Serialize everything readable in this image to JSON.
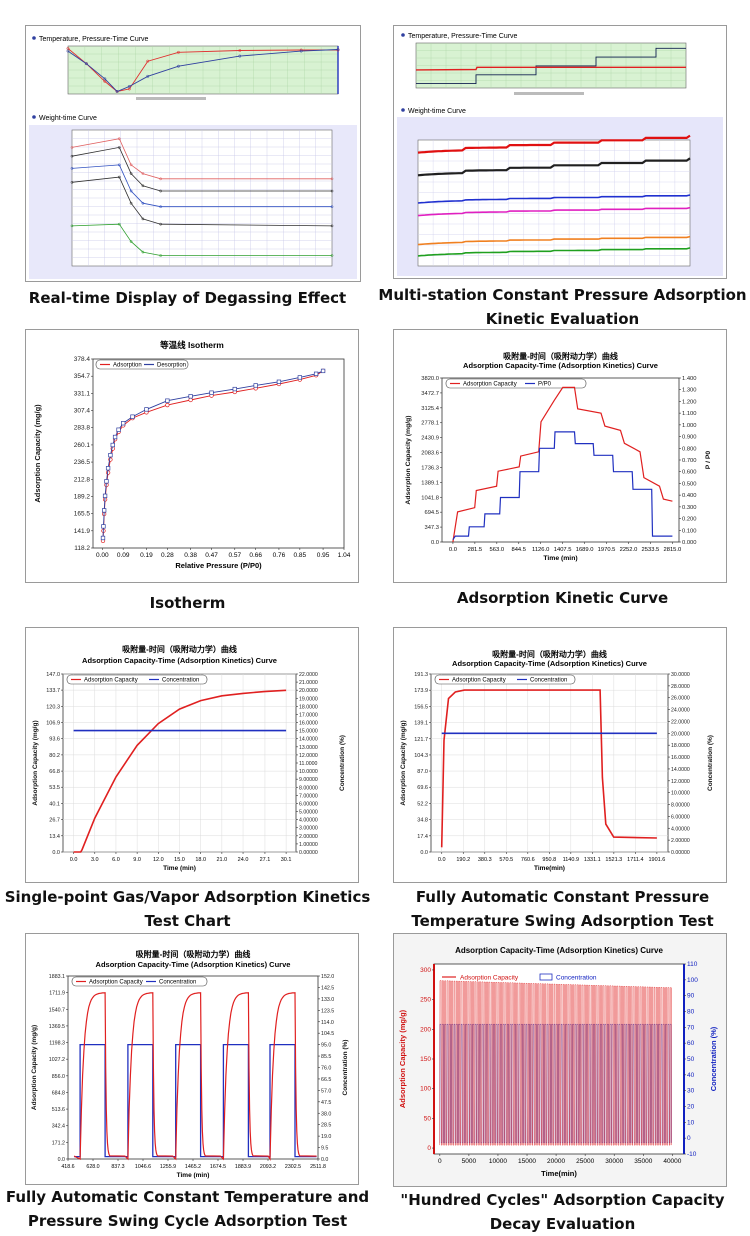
{
  "captions": {
    "p1": "Real-time Display of Degassing Effect",
    "p2": "Multi-station Constant Pressure Adsorption Kinetic Evaluation",
    "p3": "Isotherm",
    "p4": "Adsorption Kinetic Curve",
    "p5": "Single-point Gas/Vapor Adsorption Kinetics Test Chart",
    "p6": "Fully Automatic Constant Pressure Temperature Swing Adsorption Test",
    "p7": "Fully Automatic Constant Temperature and Pressure Swing Cycle Adsorption Test",
    "p8": "\"Hundred Cycles\" Adsorption Capacity Decay Evaluation"
  },
  "chart_data": [
    {
      "id": "degas",
      "type": "line",
      "subplots": [
        {
          "title": "Temperature, Pressure-Time Curve",
          "x": [
            4,
            10,
            16,
            20,
            24,
            30,
            40,
            60,
            80,
            92
          ],
          "series": [
            {
              "values": [
                260,
                200,
                130,
                90,
                100,
                210,
                245,
                252,
                254,
                254
              ],
              "color": "#e03030"
            },
            {
              "values": [
                250,
                200,
                140,
                90,
                110,
                150,
                190,
                230,
                250,
                256
              ],
              "color": "#3040a0"
            }
          ]
        },
        {
          "title": "Weight-time Curve",
          "x": [
            4,
            20,
            24,
            28,
            34,
            92
          ],
          "series": [
            {
              "values": [
                350,
                355,
                340,
                335,
                332,
                332
              ],
              "color": "#e06060"
            },
            {
              "values": [
                345,
                350,
                335,
                328,
                325,
                325
              ],
              "color": "#303030"
            },
            {
              "values": [
                338,
                340,
                325,
                318,
                316,
                316
              ],
              "color": "#3050c0"
            },
            {
              "values": [
                330,
                333,
                318,
                309,
                306,
                305
              ],
              "color": "#303030"
            },
            {
              "values": [
                305,
                306,
                296,
                290,
                288,
                288
              ],
              "color": "#30a030"
            }
          ]
        }
      ]
    },
    {
      "id": "multistation",
      "type": "line",
      "subplots": [
        {
          "title": "Temperature, Pressure-Time Curve",
          "x": [
            0,
            400,
            800,
            1200,
            1600,
            1800
          ],
          "series": [
            {
              "values": [
                1,
                2,
                3,
                4,
                5,
                5
              ],
              "color": "#102050"
            },
            {
              "values": [
                2.6,
                2.7,
                2.7,
                2.7,
                2.7,
                2.7
              ],
              "color": "#e02020"
            }
          ]
        },
        {
          "title": "Weight-time Curve",
          "series": [
            {
              "color": "#e01010",
              "level": 0.9
            },
            {
              "color": "#202020",
              "level": 0.72
            },
            {
              "color": "#2030d0",
              "level": 0.5
            },
            {
              "color": "#e020c0",
              "level": 0.4
            },
            {
              "color": "#f08020",
              "level": 0.17
            },
            {
              "color": "#20a020",
              "level": 0.08
            }
          ]
        }
      ]
    },
    {
      "id": "isotherm",
      "type": "line",
      "title": "等温线 Isotherm",
      "xlabel": "Relative Pressure (P/P0)",
      "ylabel": "Adsorption Capacity (mg/g)",
      "xticks": [
        "0.00",
        "0.09",
        "0.19",
        "0.28",
        "0.38",
        "0.47",
        "0.57",
        "0.66",
        "0.76",
        "0.85",
        "0.95",
        "1.04"
      ],
      "yticks": [
        "118.2",
        "141.9",
        "165.5",
        "189.2",
        "212.8",
        "236.5",
        "260.1",
        "283.8",
        "307.4",
        "331.1",
        "354.7",
        "378.4"
      ],
      "xlim": [
        -0.04,
        1.04
      ],
      "ylim": [
        118.2,
        378.4
      ],
      "series": [
        {
          "name": "Adsorption",
          "color": "#e02020",
          "x": [
            0.003,
            0.005,
            0.008,
            0.012,
            0.018,
            0.025,
            0.035,
            0.045,
            0.055,
            0.07,
            0.09,
            0.13,
            0.19,
            0.28,
            0.38,
            0.47,
            0.57,
            0.66,
            0.76,
            0.85,
            0.92,
            0.95
          ],
          "y": [
            128,
            142,
            165,
            185,
            205,
            222,
            240,
            255,
            268,
            278,
            287,
            297,
            305,
            315,
            322,
            328,
            333,
            338,
            344,
            350,
            356,
            362
          ]
        },
        {
          "name": "Desorption",
          "color": "#3040a0",
          "x": [
            0.003,
            0.005,
            0.008,
            0.012,
            0.018,
            0.025,
            0.035,
            0.045,
            0.055,
            0.07,
            0.09,
            0.13,
            0.19,
            0.28,
            0.38,
            0.47,
            0.57,
            0.66,
            0.76,
            0.85,
            0.92,
            0.95
          ],
          "y": [
            132,
            148,
            170,
            190,
            210,
            228,
            246,
            260,
            271,
            281,
            290,
            299,
            309,
            321,
            327,
            332,
            337,
            342,
            347,
            353,
            358,
            362
          ]
        }
      ]
    },
    {
      "id": "kinetic",
      "type": "line",
      "title_cn": "吸附量-时间（吸附动力学）曲线",
      "title": "Adsorption Capacity-Time (Adsorption Kinetics) Curve",
      "xlabel": "Time (min)",
      "ylabel": "Adsorption Capacity (mg/g)",
      "y2label": "P / P0",
      "xticks": [
        "0.0",
        "281.5",
        "563.0",
        "844.5",
        "1126.0",
        "1407.5",
        "1689.0",
        "1970.5",
        "2252.0",
        "2533.5",
        "2815.0"
      ],
      "yticks": [
        "0.0",
        "347.3",
        "694.5",
        "1041.8",
        "1389.1",
        "1736.3",
        "2083.6",
        "2430.9",
        "2778.1",
        "3125.4",
        "3472.7",
        "3820.0"
      ],
      "y2ticks": [
        "0.000",
        "0.100",
        "0.200",
        "0.300",
        "0.400",
        "0.500",
        "0.600",
        "0.700",
        "0.800",
        "0.900",
        "1.000",
        "1.100",
        "1.200",
        "1.300",
        "1.400"
      ],
      "xlim": [
        -140,
        2900
      ],
      "ylim": [
        0,
        3820
      ],
      "y2lim": [
        0,
        1.4
      ],
      "series": [
        {
          "name": "Adsorption  Capacity",
          "color": "#e02020",
          "x": [
            0,
            60,
            280,
            300,
            560,
            580,
            850,
            870,
            1100,
            1130,
            1300,
            1410,
            1560,
            1600,
            1900,
            1950,
            2150,
            2200,
            2400,
            2450,
            2650,
            2700,
            2815
          ],
          "y": [
            0,
            700,
            800,
            1200,
            1300,
            1650,
            1750,
            2000,
            2100,
            2800,
            3300,
            3600,
            3600,
            3100,
            3000,
            2700,
            2600,
            2300,
            2100,
            1500,
            1300,
            1000,
            950
          ]
        },
        {
          "name": "P/P0",
          "color": "#2030c0",
          "x": [
            0,
            30,
            200,
            210,
            400,
            410,
            600,
            610,
            850,
            860,
            1100,
            1110,
            1300,
            1310,
            1560,
            1570,
            1800,
            1810,
            2050,
            2060,
            2300,
            2310,
            2550,
            2560,
            2815
          ],
          "y": [
            0.02,
            0.05,
            0.05,
            0.13,
            0.13,
            0.24,
            0.24,
            0.38,
            0.38,
            0.6,
            0.6,
            0.8,
            0.8,
            0.94,
            0.94,
            0.84,
            0.84,
            0.74,
            0.74,
            0.6,
            0.6,
            0.45,
            0.45,
            0.05,
            0.05
          ]
        }
      ]
    },
    {
      "id": "single_point",
      "type": "line",
      "title_cn": "吸附量-时间（吸附动力学）曲线",
      "title": "Adsorption Capacity-Time (Adsorption Kinetics) Curve",
      "xlabel": "Time (min)",
      "ylabel": "Adsorption Capacity (mg/g)",
      "y2label": "Concentration (%)",
      "xticks": [
        "0.0",
        "3.0",
        "6.0",
        "9.0",
        "12.0",
        "15.0",
        "18.0",
        "21.0",
        "24.0",
        "27.1",
        "30.1"
      ],
      "yticks": [
        "0.0",
        "13.4",
        "26.7",
        "40.1",
        "53.5",
        "66.8",
        "80.2",
        "93.6",
        "106.9",
        "120.3",
        "133.7",
        "147.0"
      ],
      "y2ticks": [
        "0.00000",
        "1.00000",
        "2.00000",
        "3.00000",
        "4.00000",
        "5.00000",
        "6.00000",
        "7.00000",
        "8.00000",
        "9.00000",
        "10.0000",
        "11.0000",
        "12.0000",
        "13.0000",
        "14.0000",
        "15.0000",
        "16.0000",
        "17.0000",
        "18.0000",
        "19.0000",
        "20.0000",
        "21.0000",
        "22.0000"
      ],
      "xlim": [
        -1.5,
        31.5
      ],
      "ylim": [
        0,
        147
      ],
      "y2lim": [
        0,
        22
      ],
      "series": [
        {
          "name": "Adsorption  Capacity",
          "color": "#e02020",
          "x": [
            0,
            1,
            1.2,
            3,
            6,
            9,
            12,
            15,
            18,
            21,
            24,
            27,
            30.1
          ],
          "y": [
            0,
            0,
            2,
            28,
            62,
            88,
            106,
            118,
            125,
            129,
            131,
            132.5,
            133.5
          ]
        },
        {
          "name": "Concentration",
          "color": "#2030c0",
          "x": [
            0,
            30.1
          ],
          "y": [
            15,
            15
          ]
        }
      ]
    },
    {
      "id": "tsa",
      "type": "line",
      "title_cn": "吸附量-时间（吸附动力学）曲线",
      "title": "Adsorption Capacity-Time (Adsorption Kinetics) Curve",
      "xlabel": "Time(min)",
      "ylabel": "Adsorption Capacity (mg/g)",
      "y2label": "Concentration (%)",
      "xticks": [
        "0.0",
        "190.2",
        "380.3",
        "570.5",
        "760.6",
        "950.8",
        "1140.9",
        "1331.1",
        "1521.3",
        "1711.4",
        "1901.6"
      ],
      "yticks": [
        "0.0",
        "17.4",
        "34.8",
        "52.2",
        "69.6",
        "87.0",
        "104.3",
        "121.7",
        "139.1",
        "156.5",
        "173.9",
        "191.3"
      ],
      "y2ticks": [
        "0.00000",
        "2.00000",
        "4.00000",
        "6.00000",
        "8.00000",
        "10.0000",
        "12.0000",
        "14.0000",
        "16.0000",
        "18.0000",
        "20.0000",
        "22.0000",
        "24.0000",
        "26.0000",
        "28.0000",
        "30.0000"
      ],
      "xlim": [
        -95,
        2000
      ],
      "ylim": [
        0,
        191.3
      ],
      "y2lim": [
        0,
        30
      ],
      "series": [
        {
          "name": "Adsorption  Capacity",
          "color": "#e02020",
          "x": [
            0,
            20,
            60,
            120,
            200,
            1400,
            1420,
            1450,
            1520,
            1901.6
          ],
          "y": [
            5,
            120,
            165,
            172,
            174,
            174,
            80,
            30,
            16,
            15
          ]
        },
        {
          "name": "Concentration",
          "color": "#2030c0",
          "x": [
            0,
            1901.6
          ],
          "y": [
            20,
            20
          ]
        }
      ]
    },
    {
      "id": "psa_cycle",
      "type": "line",
      "title_cn": "吸附量-时间（吸附动力学）曲线",
      "title": "Adsorption Capacity-Time (Adsorption Kinetics) Curve",
      "xlabel": "Time (min)",
      "ylabel": "Adsorption Capacity (mg/g)",
      "y2label": "Concentration (%)",
      "xticks": [
        "418.6",
        "628.0",
        "837.3",
        "1046.6",
        "1255.9",
        "1465.2",
        "1674.5",
        "1883.9",
        "2093.2",
        "2302.5",
        "2511.8"
      ],
      "yticks": [
        "0.0",
        "171.2",
        "342.4",
        "513.6",
        "684.8",
        "856.0",
        "1027.2",
        "1198.3",
        "1369.5",
        "1540.7",
        "1711.9",
        "1883.1"
      ],
      "y2ticks": [
        "0.0",
        "9.5",
        "19.0",
        "28.5",
        "38.0",
        "47.5",
        "57.0",
        "66.5",
        "76.0",
        "85.5",
        "95.0",
        "104.5",
        "114.0",
        "123.5",
        "133.0",
        "142.5",
        "152.0"
      ],
      "xlim": [
        418.6,
        2511.8
      ],
      "ylim": [
        0,
        1883.1
      ],
      "y2lim": [
        0,
        152
      ],
      "series": [
        {
          "name": "Adsorption  Capacity",
          "color": "#e02020"
        },
        {
          "name": "Concentration",
          "color": "#2030c0"
        }
      ],
      "cycle_starts": [
        520,
        920,
        1320,
        1720,
        2110
      ],
      "cycle_length": 380,
      "ads_max": 1711.9,
      "conc_on": 95.0
    },
    {
      "id": "hundred",
      "type": "line",
      "title": "Adsorption Capacity-Time (Adsorption Kinetics) Curve",
      "xlabel": "Time(min)",
      "ylabel": "Adsorption Capacity (mg/g)",
      "y2label": "Concentration (%)",
      "xticks": [
        "0",
        "5000",
        "10000",
        "15000",
        "20000",
        "25000",
        "30000",
        "35000",
        "40000"
      ],
      "yticks": [
        "0",
        "50",
        "100",
        "150",
        "200",
        "250",
        "300"
      ],
      "y2ticks": [
        "-10",
        "0",
        "10",
        "20",
        "30",
        "40",
        "50",
        "60",
        "70",
        "80",
        "90",
        "100",
        "110"
      ],
      "xlim": [
        -1000,
        42000
      ],
      "ylim": [
        -10,
        310
      ],
      "y2lim": [
        -10,
        110
      ],
      "series": [
        {
          "name": "Adsorption Capacity",
          "color": "#e02020",
          "cycles": 100,
          "peak_start": 282,
          "peak_end": 270
        },
        {
          "name": "Concentration",
          "color": "#2030c0",
          "plateau": 72
        }
      ]
    }
  ]
}
